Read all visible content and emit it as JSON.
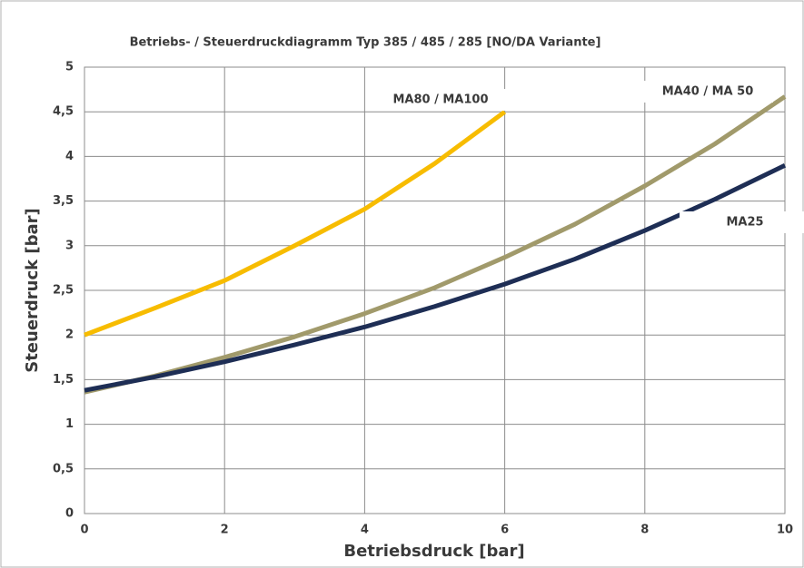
{
  "chart_data": {
    "type": "line",
    "title": "Betriebs- / Steuerdruckdiagramm Typ 385 / 485 / 285 [NO/DA Variante]",
    "xlabel": "Betriebsdruck [bar]",
    "ylabel": "Steuerdruck [bar]",
    "xlim": [
      0,
      10
    ],
    "xticks": [
      0,
      2,
      4,
      6,
      8,
      10
    ],
    "ylim": [
      0,
      5
    ],
    "yticks": [
      0,
      {
        "value": 0.5,
        "label": "0,5"
      },
      1,
      {
        "value": 1.5,
        "label": "1,5"
      },
      2,
      {
        "value": 2.5,
        "label": "2,5"
      },
      3,
      {
        "value": 3.5,
        "label": "3,5"
      },
      4,
      {
        "value": 4.5,
        "label": "4,5"
      },
      5
    ],
    "grid": true,
    "series": [
      {
        "name": "MA80 / MA100",
        "color": "#f7bc00",
        "x": [
          0,
          1,
          2,
          3,
          4,
          5,
          6
        ],
        "values": [
          2.0,
          2.3,
          2.61,
          3.0,
          3.41,
          3.92,
          4.5
        ]
      },
      {
        "name": "MA40 / MA 50",
        "color": "#a19a6b",
        "x": [
          0,
          1,
          2,
          3,
          4,
          5,
          6,
          7,
          8,
          9,
          10
        ],
        "values": [
          1.36,
          1.54,
          1.75,
          1.98,
          2.24,
          2.53,
          2.87,
          3.24,
          3.67,
          4.14,
          4.67
        ]
      },
      {
        "name": "MA25",
        "color": "#1e2e55",
        "x": [
          0,
          1,
          2,
          3,
          4,
          5,
          6,
          7,
          8,
          9,
          10
        ],
        "values": [
          1.38,
          1.53,
          1.7,
          1.89,
          2.09,
          2.32,
          2.57,
          2.85,
          3.17,
          3.52,
          3.9
        ]
      }
    ]
  }
}
